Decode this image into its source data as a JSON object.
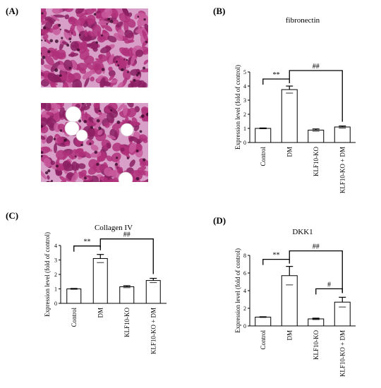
{
  "panels": {
    "a": {
      "letter": "(A)"
    },
    "b": {
      "letter": "(B)"
    },
    "c": {
      "letter": "(C)"
    },
    "d": {
      "letter": "(D)"
    }
  },
  "histology": {
    "tissue_color": "#b0307a",
    "background_color": "#d8a0c8",
    "vacuole_color": "#ffffff"
  },
  "chart_data": [
    {
      "id": "b",
      "type": "bar",
      "title": "fibronectin",
      "ylabel": "Expression level  (fold of control)",
      "xlabel": "",
      "categories": [
        "Control",
        "DM",
        "KLF10-KO",
        "KLF10-KO + DM"
      ],
      "values": [
        1.0,
        3.75,
        0.88,
        1.1
      ],
      "errors": [
        0.03,
        0.25,
        0.08,
        0.07
      ],
      "ylim": [
        0,
        5
      ],
      "yticks": [
        0,
        1,
        2,
        3,
        4,
        5
      ],
      "grid": false,
      "significance": [
        {
          "from": 0,
          "to": 1,
          "label": "**"
        },
        {
          "from": 1,
          "to": 3,
          "label": "##"
        }
      ]
    },
    {
      "id": "c",
      "type": "bar",
      "title": "Collagen IV",
      "ylabel": "Expression level  (fold of control)",
      "xlabel": "",
      "categories": [
        "Control",
        "DM",
        "KLF10-KO",
        "KLF10-KO + DM"
      ],
      "values": [
        1.0,
        3.1,
        1.15,
        1.58
      ],
      "errors": [
        0.03,
        0.28,
        0.07,
        0.15
      ],
      "ylim": [
        0,
        4
      ],
      "yticks": [
        0,
        1,
        2,
        3,
        4
      ],
      "grid": false,
      "significance": [
        {
          "from": 0,
          "to": 1,
          "label": "**"
        },
        {
          "from": 1,
          "to": 3,
          "label": "##"
        }
      ]
    },
    {
      "id": "d",
      "type": "bar",
      "title": "DKK1",
      "ylabel": "Expression level  (fold of control)",
      "xlabel": "",
      "categories": [
        "Control",
        "DM",
        "KLF10-KO",
        "KLF10-KO + DM"
      ],
      "values": [
        1.0,
        5.7,
        0.8,
        2.7
      ],
      "errors": [
        0.04,
        1.05,
        0.08,
        0.55
      ],
      "ylim": [
        0,
        8
      ],
      "yticks": [
        0,
        2,
        4,
        6,
        8
      ],
      "grid": false,
      "significance": [
        {
          "from": 0,
          "to": 1,
          "label": "**"
        },
        {
          "from": 1,
          "to": 3,
          "label": "##"
        },
        {
          "from": 2,
          "to": 3,
          "label": "#"
        }
      ]
    }
  ]
}
